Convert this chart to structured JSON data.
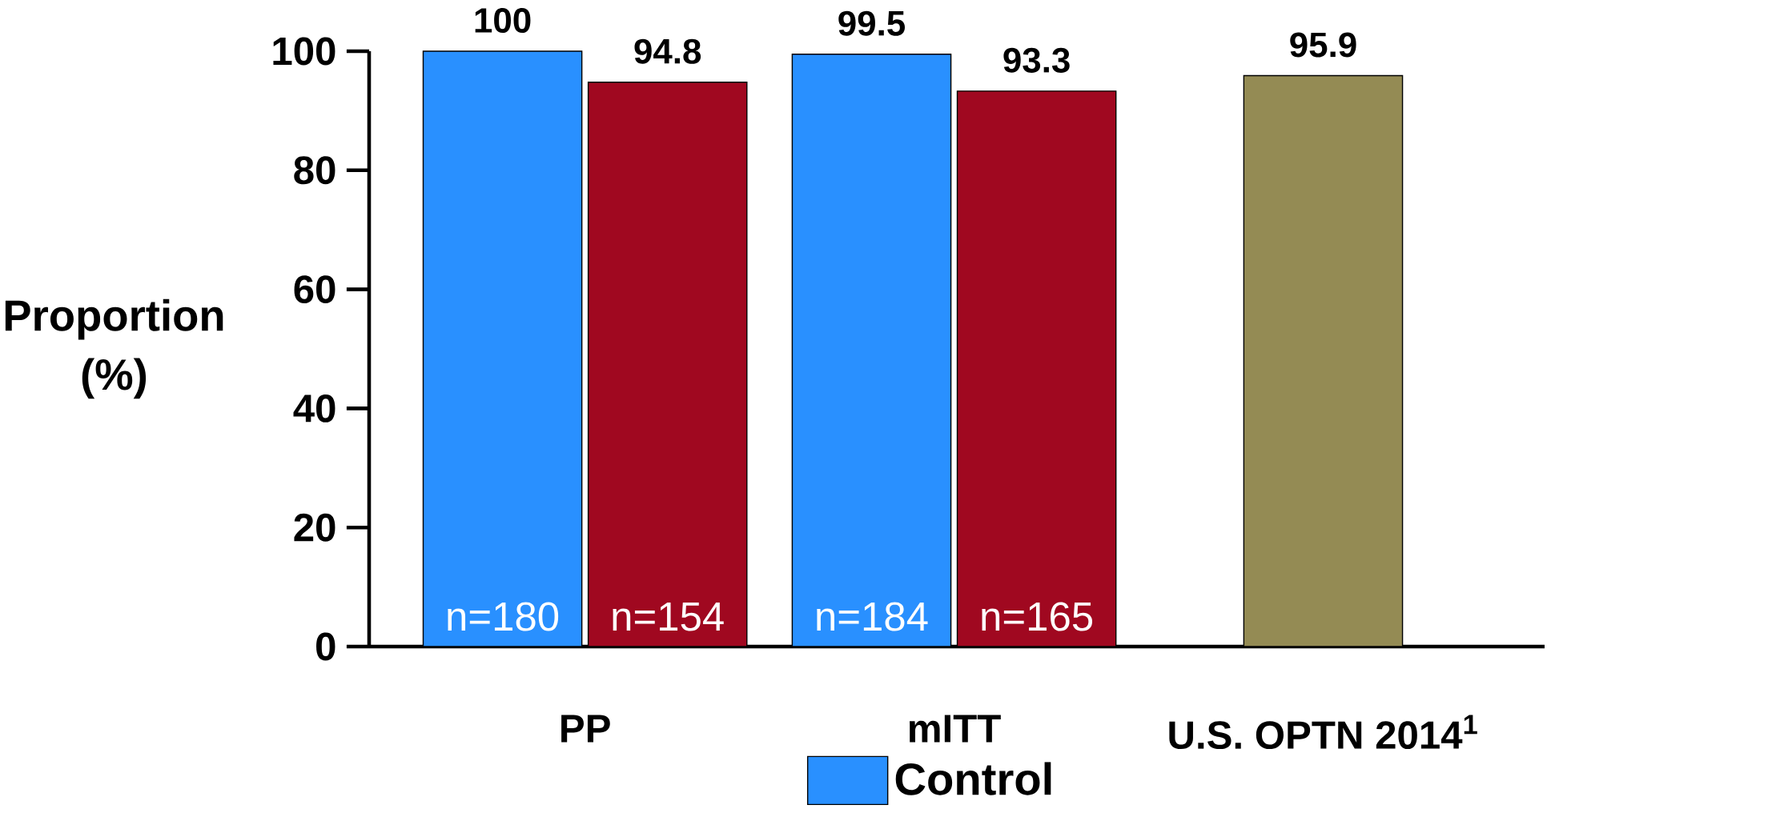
{
  "chart_data": {
    "type": "bar",
    "ylabel": "Proportion (%)",
    "categories": [
      "PP",
      "mITT",
      "U.S. OPTN 2014$^{1}$"
    ],
    "series": [
      {
        "name": "Control",
        "color": "#2990ff",
        "values": [
          100,
          99.5,
          null
        ]
      },
      {
        "color": "#a00820",
        "values": [
          94.8,
          93.3,
          null
        ]
      },
      {
        "color": "#948b54",
        "values": [
          null,
          null,
          95.9
        ]
      }
    ],
    "ylim": [
      0,
      100
    ],
    "yticks": [
      0,
      20,
      40,
      60,
      80,
      100
    ],
    "data_labels": true,
    "legend": "bottom",
    "annotations": [
      "n=180",
      "n=154",
      "n=184",
      "n=165"
    ]
  }
}
